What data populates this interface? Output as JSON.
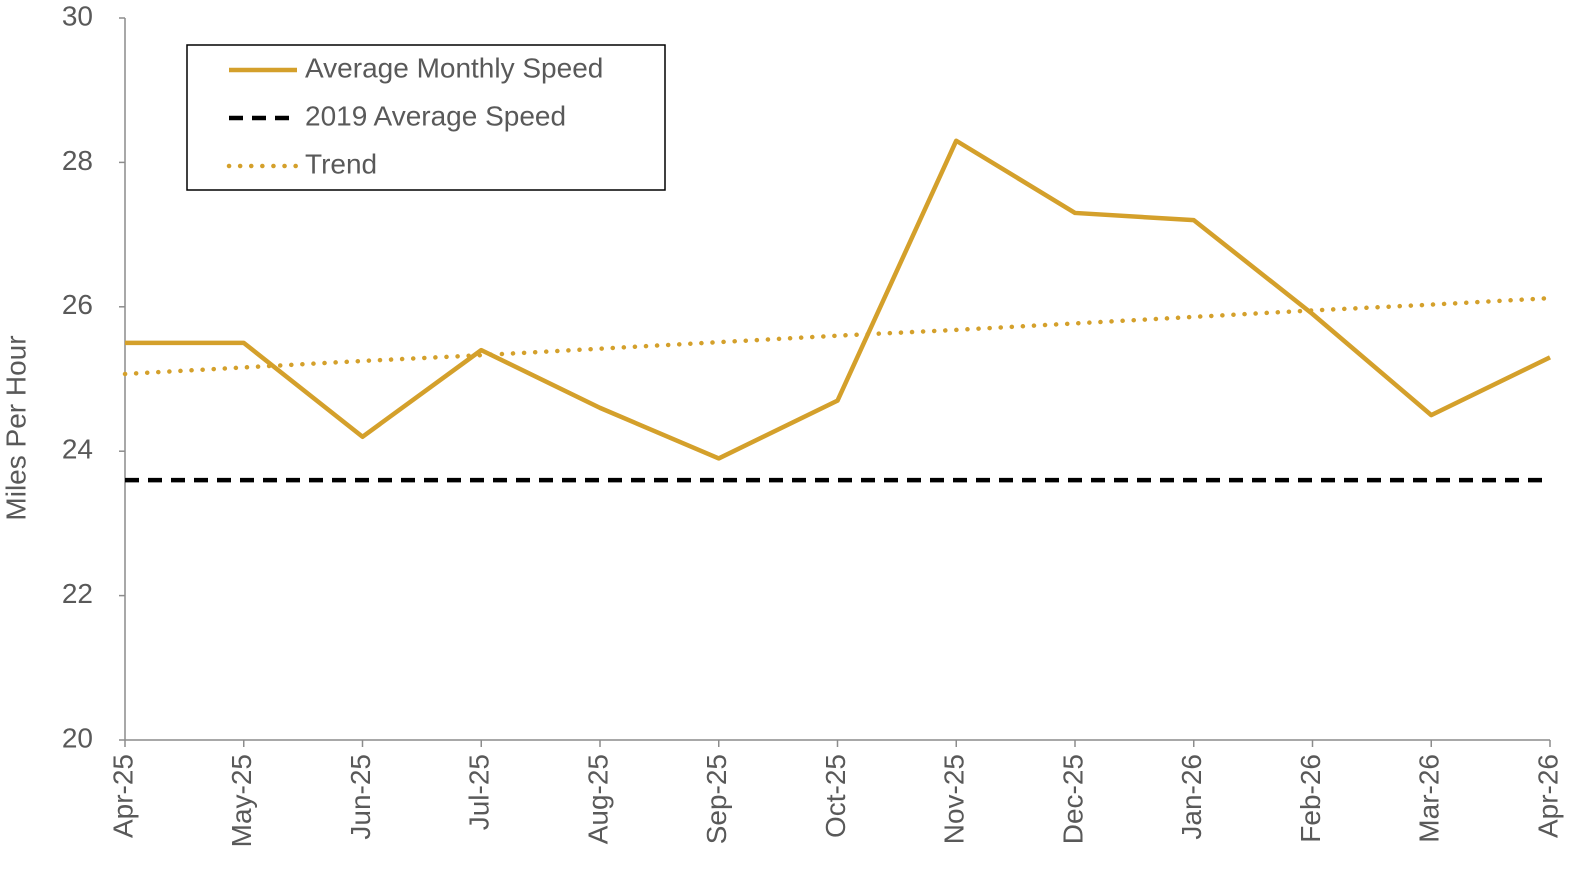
{
  "chart_data": {
    "type": "line",
    "y_label": "Miles Per Hour",
    "categories": [
      "Apr-25",
      "May-25",
      "Jun-25",
      "Jul-25",
      "Aug-25",
      "Sep-25",
      "Oct-25",
      "Nov-25",
      "Dec-25",
      "Jan-26",
      "Feb-26",
      "Mar-26",
      "Apr-26"
    ],
    "series": [
      {
        "name": "Average Monthly Speed",
        "color": "#d4a02b",
        "dash": "solid",
        "values": [
          25.5,
          25.5,
          24.2,
          25.4,
          24.6,
          23.9,
          24.7,
          28.3,
          27.3,
          27.2,
          25.9,
          24.5,
          25.3
        ]
      },
      {
        "name": "2019 Average Speed",
        "color": "#000000",
        "dash": "dashed",
        "values": [
          23.6,
          23.6,
          23.6,
          23.6,
          23.6,
          23.6,
          23.6,
          23.6,
          23.6,
          23.6,
          23.6,
          23.6,
          23.6
        ]
      },
      {
        "name": "Trend",
        "color": "#d4a02b",
        "dash": "dotted",
        "values": [
          25.07,
          25.16,
          25.25,
          25.33,
          25.42,
          25.51,
          25.6,
          25.68,
          25.77,
          25.86,
          25.95,
          26.03,
          26.12
        ]
      }
    ],
    "ylim": [
      20,
      30
    ],
    "yticks": [
      20,
      22,
      24,
      26,
      28,
      30
    ],
    "grid": false,
    "legend": "top-left"
  }
}
